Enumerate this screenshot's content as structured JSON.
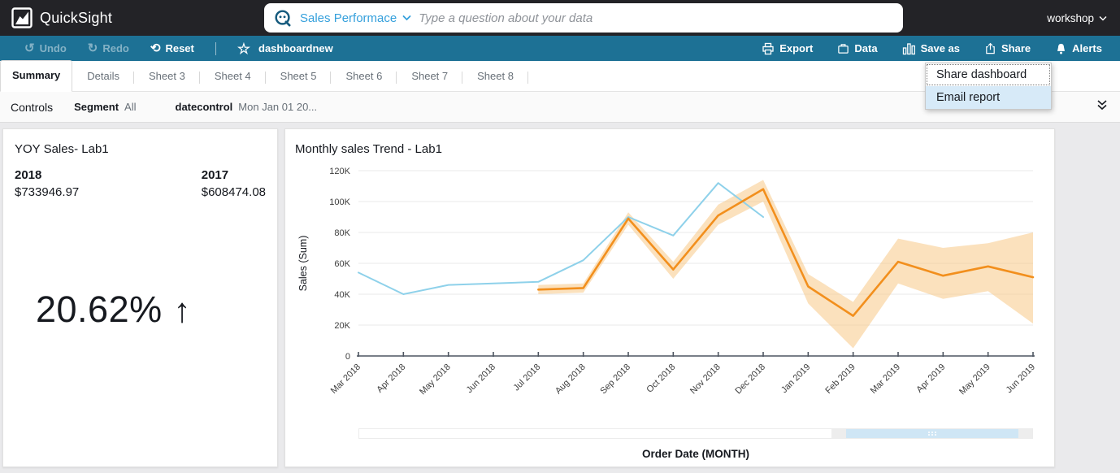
{
  "topbar": {
    "app_name": "QuickSight",
    "q_topic": "Sales Performace",
    "search_placeholder": "Type a question about your data",
    "user_menu": "workshop"
  },
  "toolbar": {
    "undo": "Undo",
    "redo": "Redo",
    "reset": "Reset",
    "dashboard_name": "dashboardnew",
    "export": "Export",
    "data": "Data",
    "save_as": "Save as",
    "share": "Share",
    "alerts": "Alerts"
  },
  "save_as_menu": {
    "items": [
      "Share dashboard",
      "Email report"
    ],
    "highlighted_item": "Email report"
  },
  "tabs": {
    "items": [
      "Summary",
      "Details",
      "Sheet 3",
      "Sheet 4",
      "Sheet 5",
      "Sheet 6",
      "Sheet 7",
      "Sheet 8"
    ],
    "active_tab": "Summary"
  },
  "controls": {
    "label": "Controls",
    "segment_label": "Segment",
    "segment_value": "All",
    "date_label": "datecontrol",
    "date_value": "Mon Jan 01 20..."
  },
  "kpi_card": {
    "title": "YOY Sales- Lab1",
    "periods": [
      {
        "year": "2018",
        "value": "$733946.97"
      },
      {
        "year": "2017",
        "value": "$608474.08"
      }
    ],
    "change_pct": "20.62%",
    "trend_arrow": "↑",
    "trend_direction": "up"
  },
  "chart_card": {
    "title": "Monthly sales Trend - Lab1"
  },
  "chart_data": {
    "type": "line",
    "title": "Monthly sales Trend - Lab1",
    "xlabel": "Order Date (MONTH)",
    "ylabel": "Sales (Sum)",
    "categories": [
      "Mar 2018",
      "Apr 2018",
      "May 2018",
      "Jun 2018",
      "Jul 2018",
      "Aug 2018",
      "Sep 2018",
      "Oct 2018",
      "Nov 2018",
      "Dec 2018",
      "Jan 2019",
      "Feb 2019",
      "Mar 2019",
      "Apr 2019",
      "May 2019",
      "Jun 2019"
    ],
    "ylim": [
      0,
      120000
    ],
    "yticks": [
      0,
      20000,
      40000,
      60000,
      80000,
      100000,
      120000
    ],
    "ytick_labels": [
      "0",
      "20K",
      "40K",
      "60K",
      "80K",
      "100K",
      "120K"
    ],
    "grid": true,
    "legend": "none",
    "series": [
      {
        "name": "Sales (actual)",
        "color": "#8ed1ea",
        "stroke_width": 2,
        "start_index": 0,
        "values": [
          54000,
          40000,
          46000,
          47000,
          48000,
          62000,
          90000,
          78000,
          112000,
          90000
        ]
      },
      {
        "name": "Sales (forecast)",
        "color": "#f28f1d",
        "stroke_width": 2.6,
        "start_index": 4,
        "values": [
          43000,
          44000,
          89000,
          56000,
          91000,
          108000,
          45000,
          26000,
          61000,
          52000,
          58000,
          51000
        ]
      }
    ],
    "band": {
      "name": "forecast-confidence-band",
      "color": "#f8c47c",
      "opacity": 0.5,
      "start_index": 4,
      "upper": [
        46000,
        47000,
        93000,
        61000,
        98000,
        114000,
        53000,
        35000,
        76000,
        70000,
        73000,
        80000
      ],
      "lower": [
        40000,
        41000,
        85000,
        50000,
        85000,
        100000,
        34000,
        5000,
        47000,
        37000,
        42000,
        21000
      ]
    }
  }
}
